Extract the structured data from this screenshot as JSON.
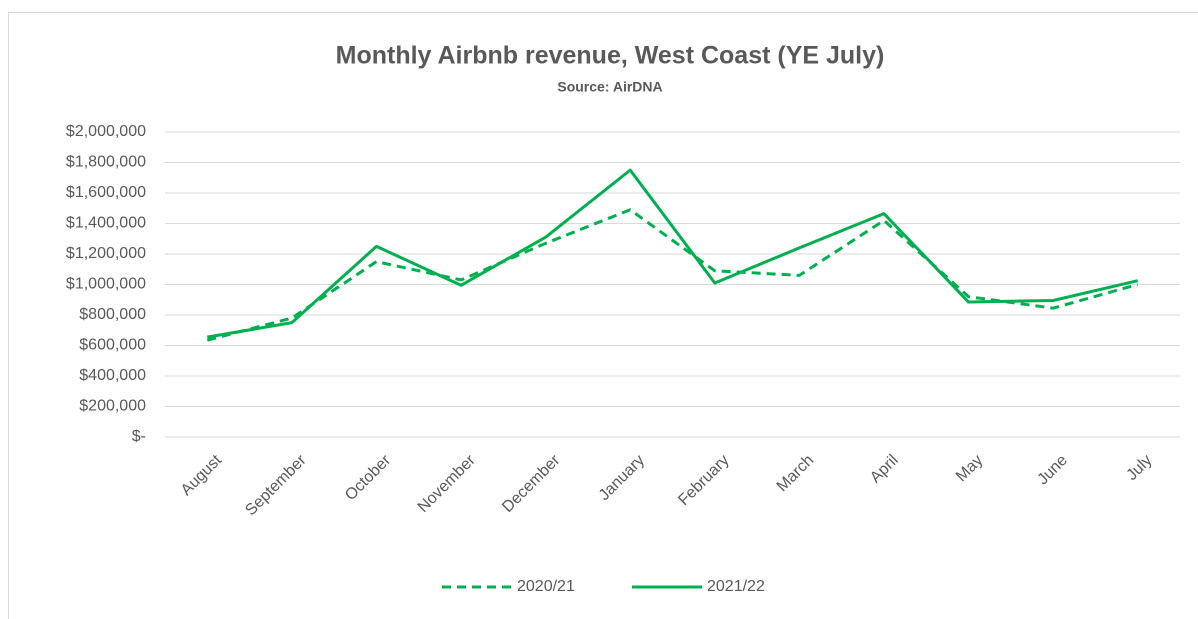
{
  "chart_data": {
    "type": "line",
    "title": "Monthly Airbnb revenue, West Coast (YE July)",
    "subtitle": "Source: AirDNA",
    "categories": [
      "August",
      "September",
      "October",
      "November",
      "December",
      "January",
      "February",
      "March",
      "April",
      "May",
      "June",
      "July"
    ],
    "series": [
      {
        "name": "2020/21",
        "color": "#00b050",
        "style": "dashed",
        "values": [
          635000,
          780000,
          1150000,
          1030000,
          1270000,
          1490000,
          1090000,
          1060000,
          1420000,
          920000,
          845000,
          1000000
        ]
      },
      {
        "name": "2021/22",
        "color": "#00b050",
        "style": "solid",
        "values": [
          655000,
          750000,
          1250000,
          995000,
          1310000,
          1750000,
          1010000,
          1240000,
          1465000,
          885000,
          895000,
          1025000
        ]
      }
    ],
    "ylim": [
      0,
      2000000
    ],
    "yticks": [
      {
        "value": 0,
        "label": "$-"
      },
      {
        "value": 200000,
        "label": "$200,000"
      },
      {
        "value": 400000,
        "label": "$400,000"
      },
      {
        "value": 600000,
        "label": "$600,000"
      },
      {
        "value": 800000,
        "label": "$800,000"
      },
      {
        "value": 1000000,
        "label": "$1,000,000"
      },
      {
        "value": 1200000,
        "label": "$1,200,000"
      },
      {
        "value": 1400000,
        "label": "$1,400,000"
      },
      {
        "value": 1600000,
        "label": "$1,600,000"
      },
      {
        "value": 1800000,
        "label": "$1,800,000"
      },
      {
        "value": 2000000,
        "label": "$2,000,000"
      }
    ],
    "grid": true,
    "legend": "bottom"
  }
}
